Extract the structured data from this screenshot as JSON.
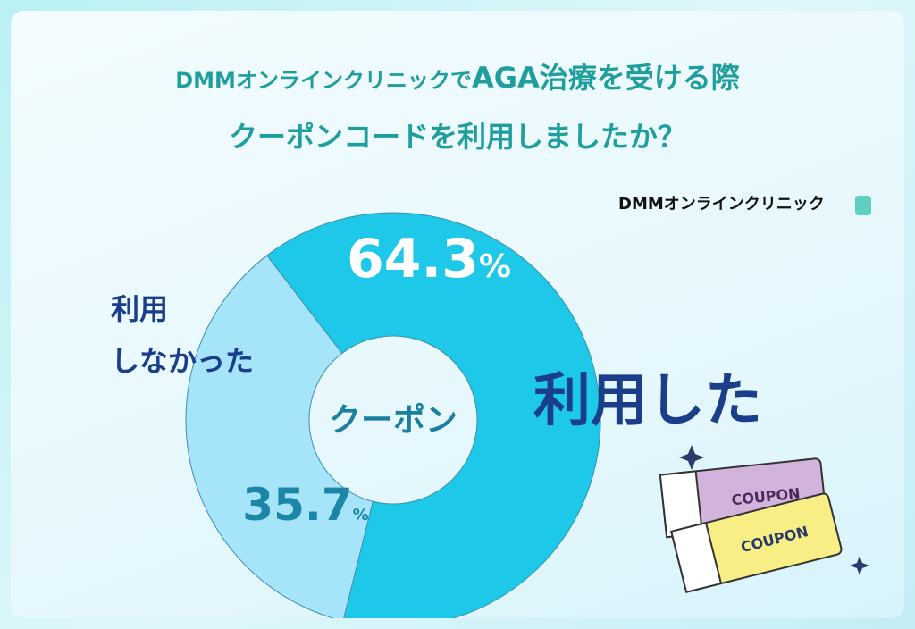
{
  "chart_data": {
    "type": "donut",
    "title": [
      "DMMオンラインクリニックで",
      "AGA治療を受ける際",
      "クーポンコードを利用しましたか？"
    ],
    "center_label": "クーポン",
    "categories": [
      "利用した",
      "利用\nしなかった"
    ],
    "values": [
      64.3,
      35.7
    ],
    "value_labels": [
      "64.3%",
      "35.7%"
    ],
    "colors": [
      "#1ec8e8",
      "#a6e4fa"
    ]
  },
  "brand": "DMMオンラインクリニック",
  "illustration": {
    "coupon_labels": [
      "COUPON",
      "COUPON"
    ]
  }
}
